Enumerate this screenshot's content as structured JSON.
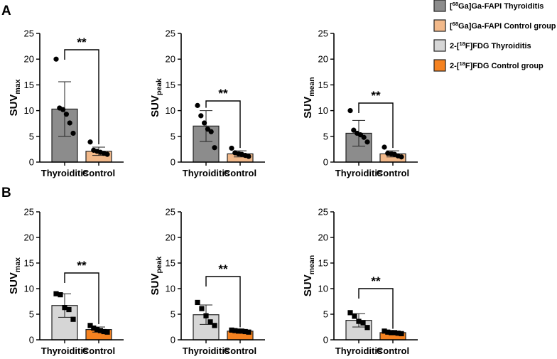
{
  "panel_labels": [
    "A",
    "B"
  ],
  "legend": [
    {
      "pre": "[",
      "sup": "68",
      "post": "Ga]Ga-FAPI Thyroiditis",
      "color": "#8c8c8c"
    },
    {
      "pre": "[",
      "sup": "68",
      "post": "Ga]Ga-FAPI Control group",
      "color": "#f2b98a"
    },
    {
      "pre": "2-[",
      "sup": "18",
      "post": "F]FDG Thyroiditis",
      "color": "#d6d6d6"
    },
    {
      "pre": "2-[",
      "sup": "18",
      "post": "F]FDG Control group",
      "color": "#f58220"
    }
  ],
  "chart_data": [
    {
      "type": "bar",
      "panel": "A",
      "ylabel": "SUV",
      "ysub": "max",
      "ylim": [
        0,
        25
      ],
      "yticks": [
        0,
        5,
        10,
        15,
        20,
        25
      ],
      "categories": [
        "Thyroiditis",
        "Control"
      ],
      "significance": "**",
      "marker": "circle",
      "series": [
        {
          "name": "Thyroiditis",
          "mean": 10.3,
          "sd": 5.3,
          "color": "#8c8c8c",
          "points": [
            20.0,
            10.5,
            10.2,
            9.3,
            7.6,
            5.6
          ]
        },
        {
          "name": "Control",
          "mean": 2.1,
          "sd": 0.8,
          "color": "#f2b98a",
          "points": [
            3.9,
            2.3,
            2.1,
            1.9,
            1.7,
            1.5
          ]
        }
      ]
    },
    {
      "type": "bar",
      "panel": "A",
      "ylabel": "SUV",
      "ysub": "peak",
      "ylim": [
        0,
        25
      ],
      "yticks": [
        0,
        5,
        10,
        15,
        20,
        25
      ],
      "categories": [
        "Thyroiditis",
        "Control"
      ],
      "significance": "**",
      "marker": "circle",
      "series": [
        {
          "name": "Thyroiditis",
          "mean": 7.0,
          "sd": 3.0,
          "color": "#8c8c8c",
          "points": [
            11.0,
            9.0,
            7.6,
            6.4,
            5.9,
            2.8
          ]
        },
        {
          "name": "Control",
          "mean": 1.6,
          "sd": 0.6,
          "color": "#f2b98a",
          "points": [
            2.7,
            1.8,
            1.6,
            1.5,
            1.3,
            1.1
          ]
        }
      ]
    },
    {
      "type": "bar",
      "panel": "A",
      "ylabel": "SUV",
      "ysub": "mean",
      "ylim": [
        0,
        25
      ],
      "yticks": [
        0,
        5,
        10,
        15,
        20,
        25
      ],
      "categories": [
        "Thyroiditis",
        "Control"
      ],
      "significance": "**",
      "marker": "circle",
      "series": [
        {
          "name": "Thyroiditis",
          "mean": 5.6,
          "sd": 2.5,
          "color": "#8c8c8c",
          "points": [
            10.0,
            6.2,
            5.6,
            5.3,
            4.8,
            3.9
          ]
        },
        {
          "name": "Control",
          "mean": 1.6,
          "sd": 0.6,
          "color": "#f2b98a",
          "points": [
            2.9,
            1.7,
            1.6,
            1.5,
            1.2,
            1.0
          ]
        }
      ]
    },
    {
      "type": "bar",
      "panel": "B",
      "ylabel": "SUV",
      "ysub": "max",
      "ylim": [
        0,
        25
      ],
      "yticks": [
        0,
        5,
        10,
        15,
        20,
        25
      ],
      "categories": [
        "Thyroiditis",
        "Control"
      ],
      "significance": "**",
      "marker": "square",
      "series": [
        {
          "name": "Thyroiditis",
          "mean": 6.7,
          "sd": 2.3,
          "color": "#d6d6d6",
          "points": [
            9.0,
            8.8,
            6.3,
            5.9,
            4.0
          ]
        },
        {
          "name": "Control",
          "mean": 2.0,
          "sd": 0.5,
          "color": "#f58220",
          "points": [
            2.8,
            2.3,
            2.0,
            1.8,
            1.6,
            1.5
          ]
        }
      ]
    },
    {
      "type": "bar",
      "panel": "B",
      "ylabel": "SUV",
      "ysub": "peak",
      "ylim": [
        0,
        25
      ],
      "yticks": [
        0,
        5,
        10,
        15,
        20,
        25
      ],
      "categories": [
        "Thyroiditis",
        "Control"
      ],
      "significance": "**",
      "marker": "square",
      "series": [
        {
          "name": "Thyroiditis",
          "mean": 4.9,
          "sd": 1.9,
          "color": "#d6d6d6",
          "points": [
            7.3,
            6.1,
            4.7,
            3.5,
            2.8
          ]
        },
        {
          "name": "Control",
          "mean": 1.7,
          "sd": 0.2,
          "color": "#f58220",
          "points": [
            1.9,
            1.8,
            1.7,
            1.7,
            1.6,
            1.5
          ]
        }
      ]
    },
    {
      "type": "bar",
      "panel": "B",
      "ylabel": "SUV",
      "ysub": "mean",
      "ylim": [
        0,
        25
      ],
      "yticks": [
        0,
        5,
        10,
        15,
        20,
        25
      ],
      "categories": [
        "Thyroiditis",
        "Control"
      ],
      "significance": "**",
      "marker": "square",
      "series": [
        {
          "name": "Thyroiditis",
          "mean": 3.8,
          "sd": 1.3,
          "color": "#d6d6d6",
          "points": [
            5.3,
            4.6,
            3.6,
            3.3,
            2.4
          ]
        },
        {
          "name": "Control",
          "mean": 1.4,
          "sd": 0.2,
          "color": "#f58220",
          "points": [
            1.7,
            1.5,
            1.4,
            1.4,
            1.3,
            1.2
          ]
        }
      ]
    }
  ]
}
